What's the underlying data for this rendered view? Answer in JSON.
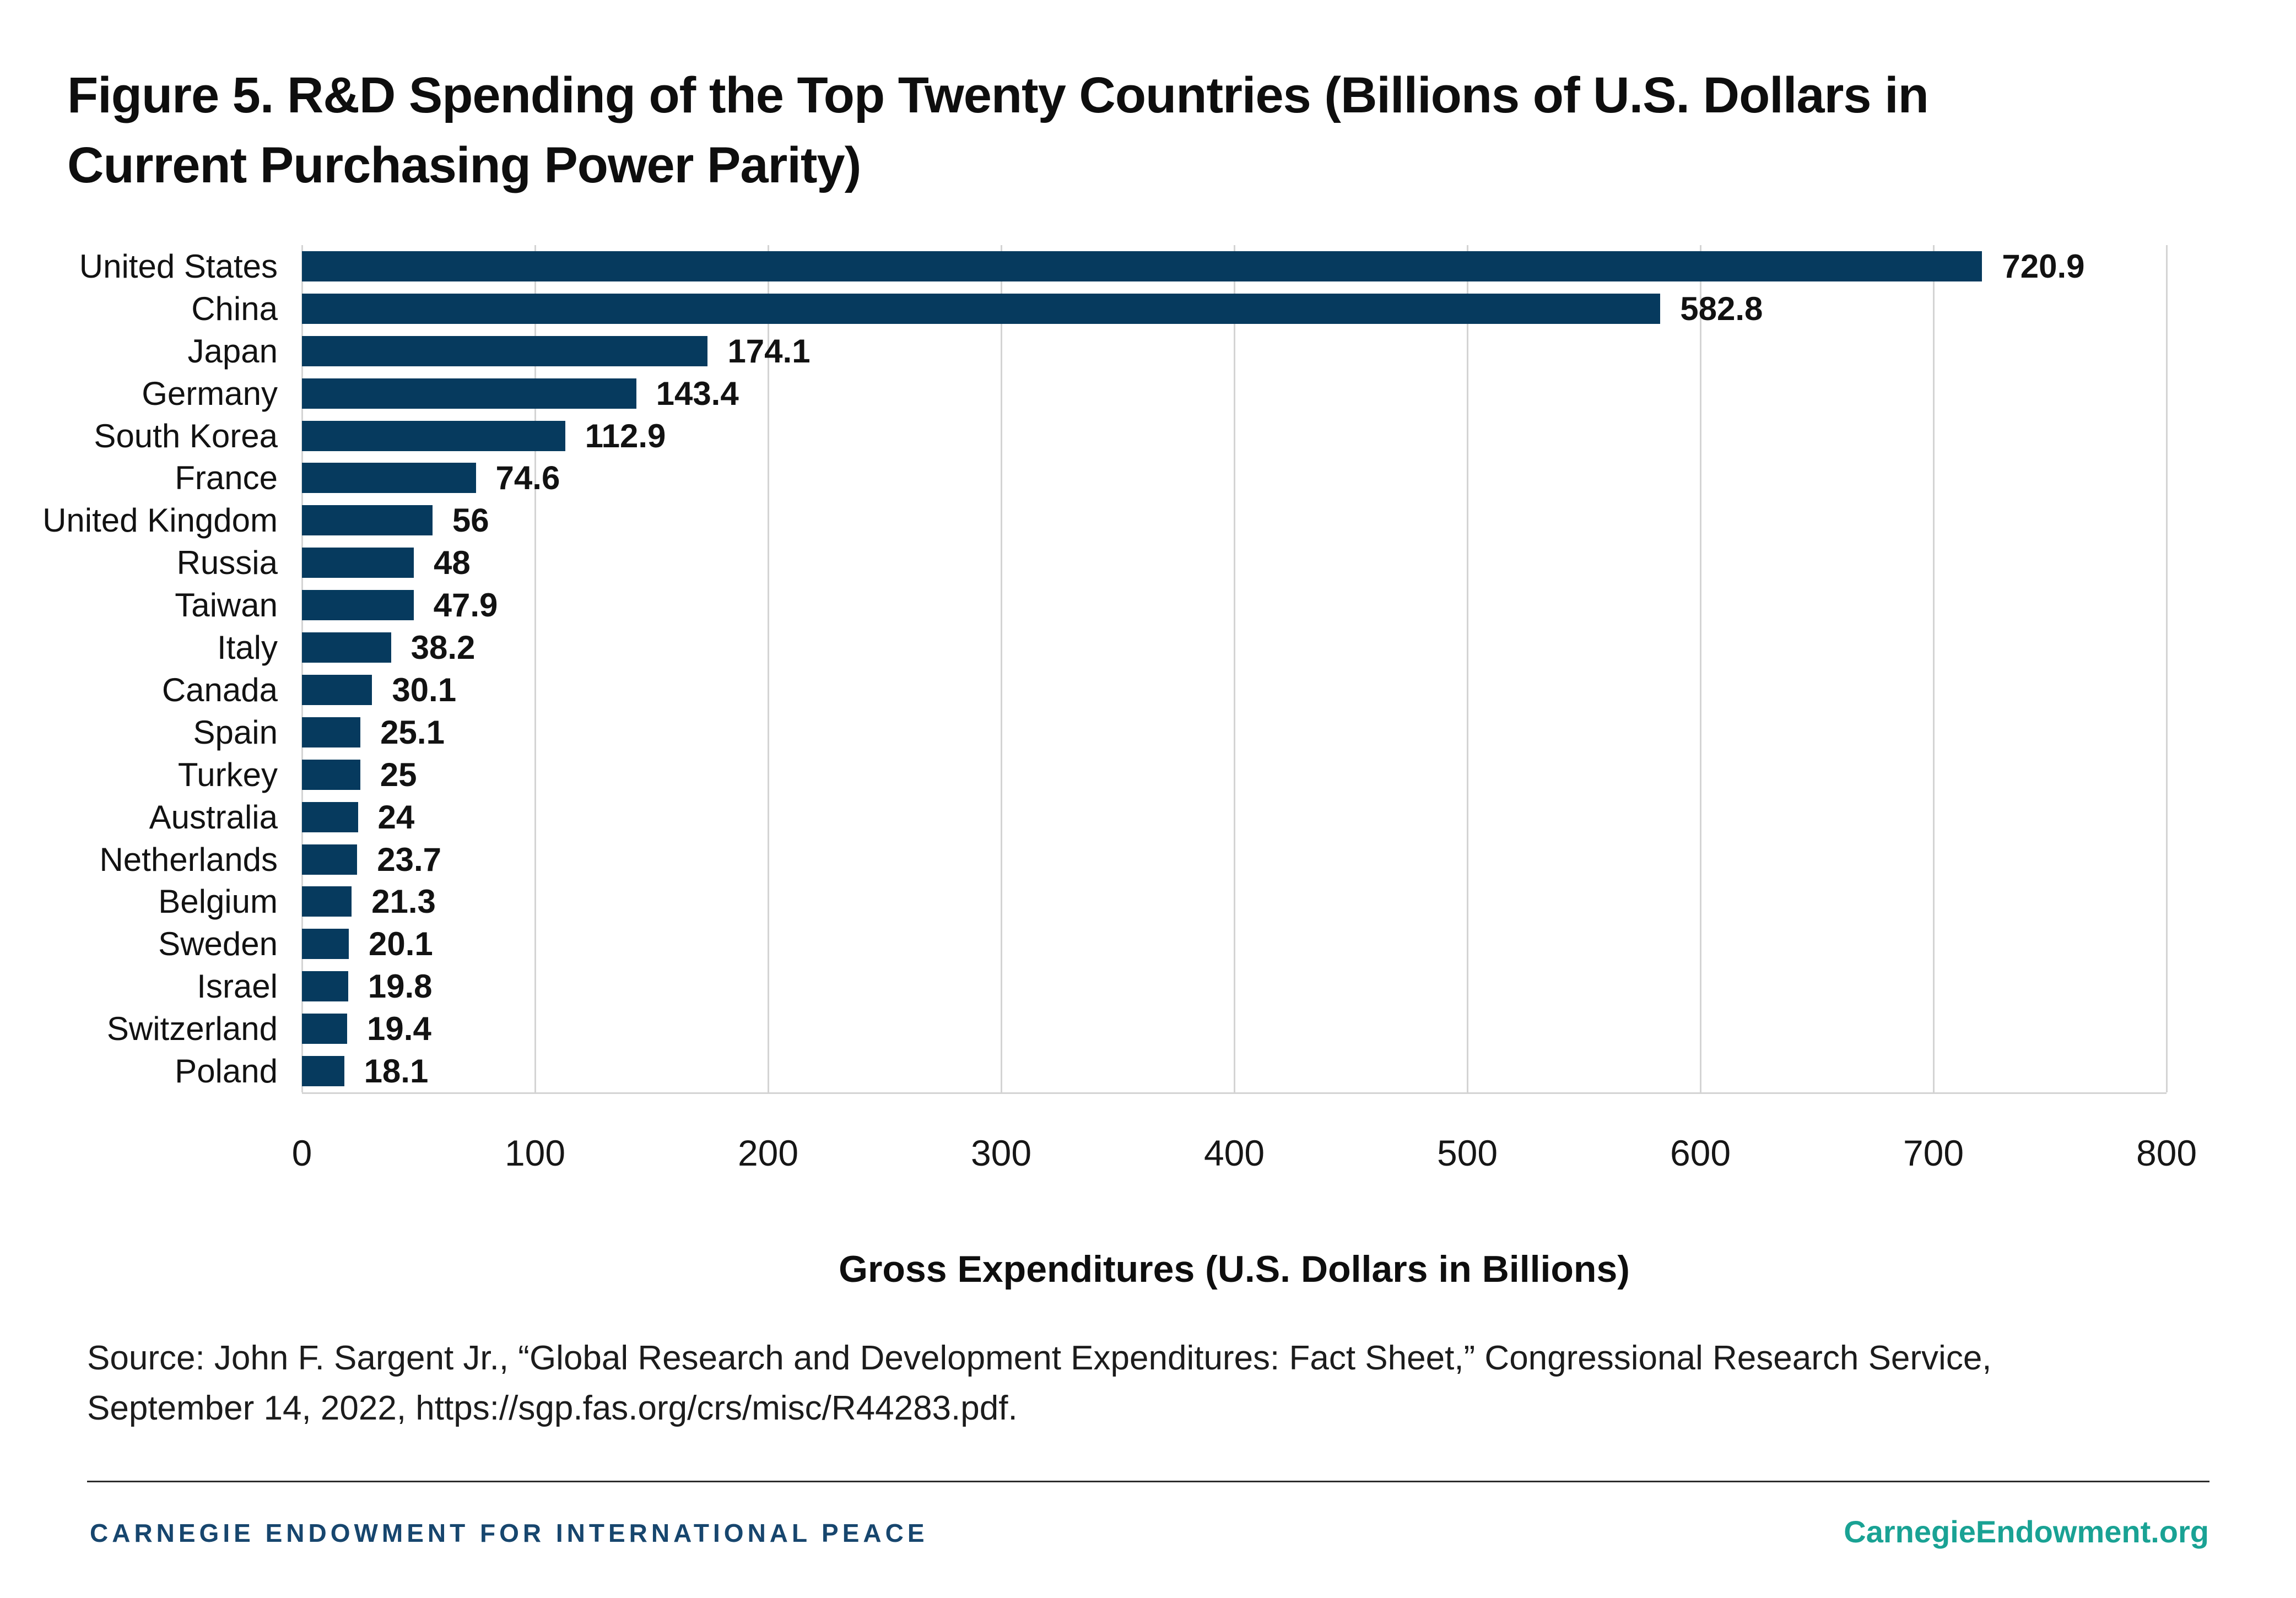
{
  "title": {
    "line1": "Figure 5. R&D Spending of the Top Twenty Countries (Billions of U.S. Dollars in",
    "line2": "Current Purchasing Power Parity)"
  },
  "chart_data": {
    "type": "bar",
    "orientation": "horizontal",
    "categories": [
      "United States",
      "China",
      "Japan",
      "Germany",
      "South Korea",
      "France",
      "United Kingdom",
      "Russia",
      "Taiwan",
      "Italy",
      "Canada",
      "Spain",
      "Turkey",
      "Australia",
      "Netherlands",
      "Belgium",
      "Sweden",
      "Israel",
      "Switzerland",
      "Poland"
    ],
    "values": [
      720.9,
      582.8,
      174.1,
      143.4,
      112.9,
      74.6,
      56,
      48,
      47.9,
      38.2,
      30.1,
      25.1,
      25,
      24,
      23.7,
      21.3,
      20.1,
      19.8,
      19.4,
      18.1
    ],
    "value_labels": [
      "720.9",
      "582.8",
      "174.1",
      "143.4",
      "112.9",
      "74.6",
      "56",
      "48",
      "47.9",
      "38.2",
      "30.1",
      "25.1",
      "25",
      "24",
      "23.7",
      "21.3",
      "20.1",
      "19.8",
      "19.4",
      "18.1"
    ],
    "xlabel": "Gross Expenditures (U.S. Dollars in Billions)",
    "xlim": [
      0,
      800
    ],
    "xticks": [
      0,
      100,
      200,
      300,
      400,
      500,
      600,
      700,
      800
    ],
    "xtick_labels": [
      "0",
      "100",
      "200",
      "300",
      "400",
      "500",
      "600",
      "700",
      "800"
    ],
    "grid": "vertical",
    "legend": "none",
    "bar_color": "#063A5E",
    "gridline_color": "#d4d4d4"
  },
  "source": {
    "line1": "Source: John F. Sargent Jr., “Global Research and Development Expenditures: Fact Sheet,” Congressional Research Service,",
    "line2": "September 14, 2022, https://sgp.fas.org/crs/misc/R44283.pdf."
  },
  "footer": {
    "org_name": "CARNEGIE ENDOWMENT FOR INTERNATIONAL PEACE",
    "org_color": "#17466E",
    "site_link": "CarnegieEndowment.org",
    "site_color": "#19A294"
  }
}
